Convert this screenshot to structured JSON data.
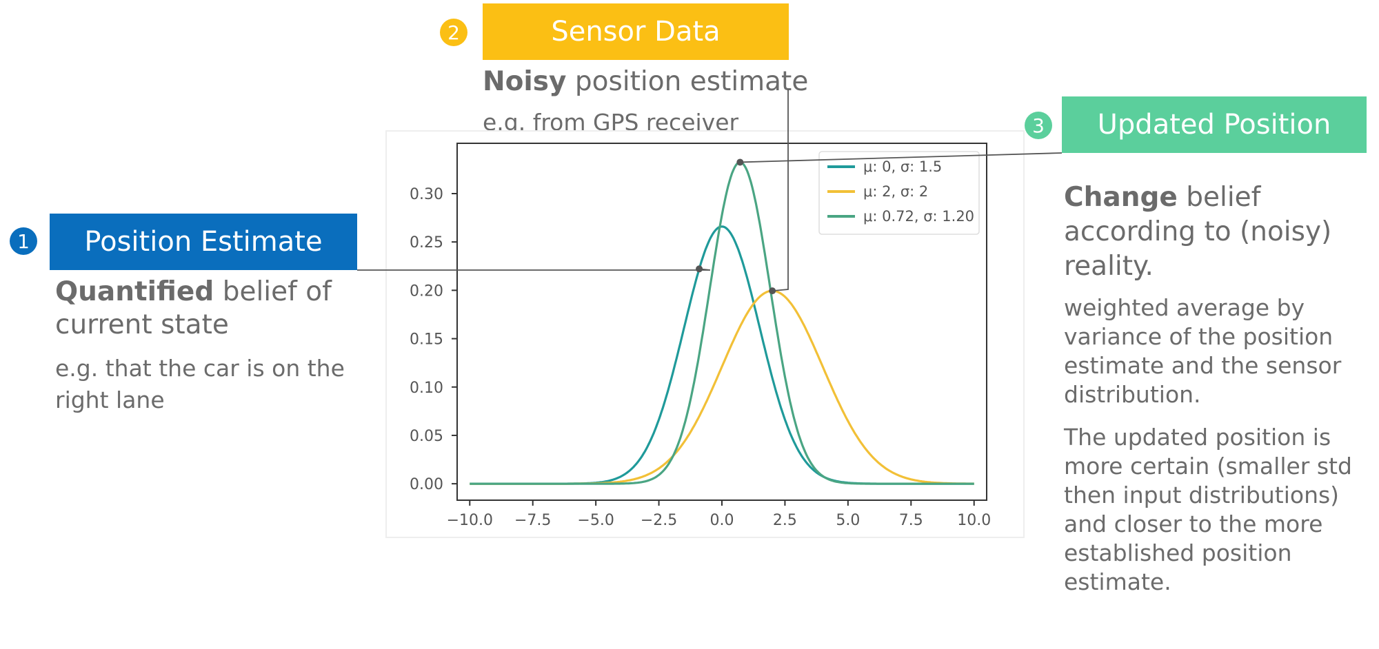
{
  "sections": {
    "position_estimate": {
      "number": "1",
      "title": "Position Estimate",
      "bold": "Quantified",
      "rest": " belief of current state",
      "example": "e.g. that the car is on the right lane",
      "color": "#0a6ebd"
    },
    "sensor_data": {
      "number": "2",
      "title": "Sensor Data",
      "bold": "Noisy",
      "rest": " position estimate",
      "example": "e.g. from GPS receiver",
      "color": "#fbbf14"
    },
    "updated_position": {
      "number": "3",
      "title": "Updated Position",
      "bold": "Change",
      "rest": " belief according to (noisy) reality.",
      "detail1": "weighted average by variance of the position estimate and the sensor distribution.",
      "detail2": "The updated position is more certain (smaller std then input distributions) and closer to the more established position estimate.",
      "color": "#5bcf9c"
    }
  },
  "chart_data": {
    "type": "line",
    "x_range": [
      -10,
      10
    ],
    "xlim": [
      -10.5,
      10.5
    ],
    "ylim": [
      -0.017,
      0.352
    ],
    "x_ticks": [
      -10,
      -7.5,
      -5,
      -2.5,
      0,
      2.5,
      5,
      7.5,
      10
    ],
    "x_tick_labels": [
      "−10.0",
      "−7.5",
      "−5.0",
      "−2.5",
      "0.0",
      "2.5",
      "5.0",
      "7.5",
      "10.0"
    ],
    "y_ticks": [
      0,
      0.05,
      0.1,
      0.15,
      0.2,
      0.25,
      0.3
    ],
    "y_tick_labels": [
      "0.00",
      "0.05",
      "0.10",
      "0.15",
      "0.20",
      "0.25",
      "0.30"
    ],
    "legend_position": "top-right",
    "series": [
      {
        "name": "μ: 0, σ: 1.5",
        "mu": 0,
        "sigma": 1.5,
        "color": "#1f9a9a"
      },
      {
        "name": "μ: 2, σ: 2",
        "mu": 2,
        "sigma": 2,
        "color": "#f2c037"
      },
      {
        "name": "μ: 0.72, σ: 1.20",
        "mu": 0.72,
        "sigma": 1.2,
        "color": "#4aa583"
      }
    ],
    "callout_points": [
      {
        "target": "position_estimate",
        "x": -0.9
      },
      {
        "target": "sensor_data",
        "x": 0.72
      },
      {
        "target": "updated_position",
        "x": 2.0
      }
    ]
  }
}
